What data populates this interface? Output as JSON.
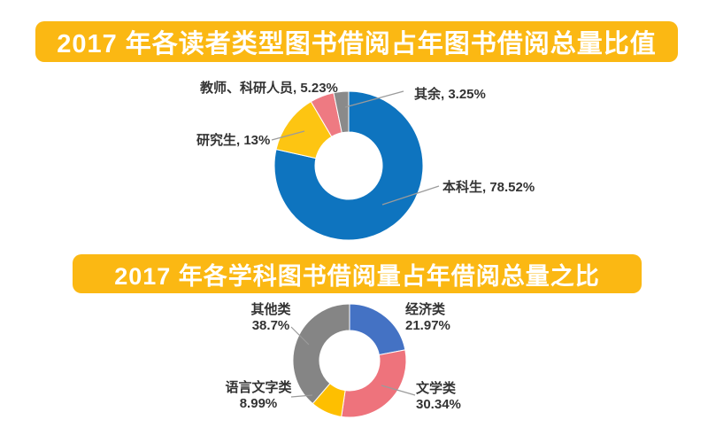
{
  "theme": {
    "background": "#FFFFFF",
    "banner_bg": "#FBB813",
    "banner_text_color": "#FFFFFF",
    "label_color": "#333333",
    "leader_line_color": "#9B9B9B"
  },
  "chart_data": [
    {
      "type": "pie",
      "subtype": "donut",
      "title": "2017 年各读者类型图书借阅占年图书借阅总量比值",
      "unit": "%",
      "clockwise_from_top": true,
      "legend_position": "none",
      "series": [
        {
          "name": "本科生",
          "value": 78.52,
          "color": "#0E74BF",
          "label": "本科生, 78.52%"
        },
        {
          "name": "研究生",
          "value": 13,
          "color": "#FDC512",
          "label": "研究生, 13%"
        },
        {
          "name": "教师、科研人员",
          "value": 5.23,
          "color": "#EE7A82",
          "label": "教师、科研人员, 5.23%"
        },
        {
          "name": "其余",
          "value": 3.25,
          "color": "#8A8A8A",
          "label": "其余, 3.25%"
        }
      ]
    },
    {
      "type": "pie",
      "subtype": "donut",
      "title": "2017 年各学科图书借阅量占年借阅总量之比",
      "unit": "%",
      "clockwise_from_top": true,
      "legend_position": "none",
      "series": [
        {
          "name": "经济类",
          "value": 21.97,
          "color": "#4472C4",
          "label_value": "21.97%"
        },
        {
          "name": "文学类",
          "value": 30.34,
          "color": "#EE737C",
          "label_value": "30.34%"
        },
        {
          "name": "语言文字类",
          "value": 8.99,
          "color": "#FEBF00",
          "label_value": "8.99%"
        },
        {
          "name": "其他类",
          "value": 38.7,
          "color": "#858585",
          "label_value": "38.7%"
        }
      ]
    }
  ]
}
